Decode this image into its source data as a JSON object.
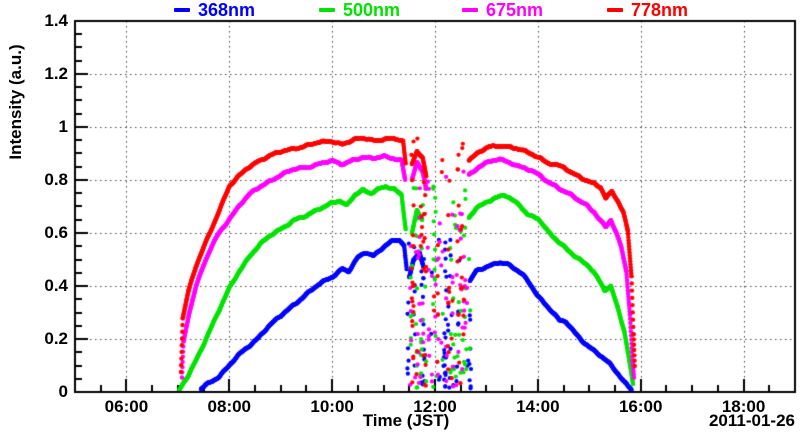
{
  "chart_data": {
    "type": "line",
    "title": "",
    "xlabel": "Time (JST)",
    "ylabel": "Intensity (a.u.)",
    "date_label": "2011-01-26",
    "xlim_hours": [
      5,
      19
    ],
    "ylim": [
      0,
      1.4
    ],
    "grid": {
      "x": true,
      "y": true,
      "style": "dotted"
    },
    "legend_position": "top",
    "xticks": [
      {
        "h": 6,
        "label": "06:00"
      },
      {
        "h": 8,
        "label": "08:00"
      },
      {
        "h": 10,
        "label": "10:00"
      },
      {
        "h": 12,
        "label": "12:00"
      },
      {
        "h": 14,
        "label": "14:00"
      },
      {
        "h": 16,
        "label": "16:00"
      },
      {
        "h": 18,
        "label": "18:00"
      }
    ],
    "x_minor_step_hours": 0.5,
    "yticks": [
      {
        "v": 0,
        "label": "0"
      },
      {
        "v": 0.2,
        "label": "0.2"
      },
      {
        "v": 0.4,
        "label": "0.4"
      },
      {
        "v": 0.6,
        "label": "0.6"
      },
      {
        "v": 0.8,
        "label": "0.8"
      },
      {
        "v": 1,
        "label": "1"
      },
      {
        "v": 1.2,
        "label": "1.2"
      },
      {
        "v": 1.4,
        "label": "1.4"
      }
    ],
    "y_minor_step": 0.05,
    "cloud_gap_hours": [
      11.45,
      12.66
    ],
    "series": [
      {
        "name": "368nm",
        "color": "#0000ff",
        "peak": 0.58,
        "segments": [
          [
            [
              7.45,
              0.01
            ],
            [
              7.6,
              0.035
            ],
            [
              7.8,
              0.06
            ],
            [
              8.0,
              0.1
            ],
            [
              8.25,
              0.15
            ],
            [
              8.5,
              0.195
            ],
            [
              8.75,
              0.245
            ],
            [
              9.0,
              0.285
            ],
            [
              9.25,
              0.33
            ],
            [
              9.5,
              0.37
            ],
            [
              9.75,
              0.405
            ],
            [
              10.0,
              0.435
            ],
            [
              10.2,
              0.468
            ],
            [
              10.32,
              0.455
            ],
            [
              10.5,
              0.505
            ],
            [
              10.65,
              0.525
            ],
            [
              10.8,
              0.515
            ],
            [
              11.0,
              0.55
            ],
            [
              11.15,
              0.568
            ],
            [
              11.3,
              0.572
            ],
            [
              11.4,
              0.55
            ],
            [
              11.45,
              0.46
            ]
          ],
          [
            [
              11.5,
              0.43
            ],
            [
              11.58,
              0.5
            ],
            [
              11.7,
              0.53
            ],
            [
              11.78,
              0.47
            ]
          ],
          [
            [
              12.68,
              0.42
            ],
            [
              12.8,
              0.455
            ],
            [
              12.95,
              0.465
            ],
            [
              13.1,
              0.478
            ],
            [
              13.25,
              0.492
            ],
            [
              13.4,
              0.486
            ],
            [
              13.55,
              0.465
            ],
            [
              13.7,
              0.442
            ],
            [
              13.85,
              0.405
            ],
            [
              14.0,
              0.365
            ],
            [
              14.15,
              0.332
            ],
            [
              14.3,
              0.3
            ],
            [
              14.42,
              0.268
            ],
            [
              14.55,
              0.262
            ],
            [
              14.7,
              0.228
            ],
            [
              14.85,
              0.198
            ],
            [
              15.0,
              0.172
            ],
            [
              15.2,
              0.138
            ],
            [
              15.4,
              0.104
            ],
            [
              15.55,
              0.072
            ],
            [
              15.7,
              0.036
            ],
            [
              15.82,
              0.012
            ]
          ]
        ],
        "cloud_scatter": {
          "t_range": [
            11.45,
            12.7
          ],
          "v_max": 0.58,
          "columns": 24,
          "seed": 11
        }
      },
      {
        "name": "500nm",
        "color": "#00e300",
        "peak": 0.775,
        "segments": [
          [
            [
              7.03,
              0.005
            ],
            [
              7.2,
              0.06
            ],
            [
              7.4,
              0.14
            ],
            [
              7.6,
              0.225
            ],
            [
              7.8,
              0.305
            ],
            [
              8.0,
              0.39
            ],
            [
              8.2,
              0.46
            ],
            [
              8.4,
              0.515
            ],
            [
              8.6,
              0.555
            ],
            [
              8.8,
              0.59
            ],
            [
              9.0,
              0.617
            ],
            [
              9.25,
              0.648
            ],
            [
              9.5,
              0.662
            ],
            [
              9.75,
              0.693
            ],
            [
              10.0,
              0.716
            ],
            [
              10.15,
              0.72
            ],
            [
              10.28,
              0.7
            ],
            [
              10.45,
              0.745
            ],
            [
              10.6,
              0.765
            ],
            [
              10.75,
              0.752
            ],
            [
              10.9,
              0.765
            ],
            [
              11.05,
              0.772
            ],
            [
              11.2,
              0.765
            ],
            [
              11.35,
              0.745
            ],
            [
              11.43,
              0.62
            ]
          ],
          [
            [
              11.55,
              0.6
            ],
            [
              11.65,
              0.685
            ],
            [
              11.75,
              0.65
            ]
          ],
          [
            [
              12.66,
              0.655
            ],
            [
              12.8,
              0.692
            ],
            [
              13.0,
              0.72
            ],
            [
              13.2,
              0.735
            ],
            [
              13.35,
              0.742
            ],
            [
              13.5,
              0.722
            ],
            [
              13.65,
              0.705
            ],
            [
              13.8,
              0.672
            ],
            [
              14.0,
              0.657
            ],
            [
              14.2,
              0.602
            ],
            [
              14.4,
              0.566
            ],
            [
              14.6,
              0.536
            ],
            [
              14.8,
              0.502
            ],
            [
              15.0,
              0.47
            ],
            [
              15.15,
              0.432
            ],
            [
              15.3,
              0.386
            ],
            [
              15.42,
              0.402
            ],
            [
              15.55,
              0.322
            ],
            [
              15.68,
              0.23
            ],
            [
              15.78,
              0.115
            ],
            [
              15.85,
              0.025
            ]
          ]
        ],
        "cloud_scatter": {
          "t_range": [
            11.45,
            12.7
          ],
          "v_max": 0.775,
          "columns": 24,
          "seed": 22
        }
      },
      {
        "name": "675nm",
        "color": "#ff00ff",
        "peak": 0.89,
        "segments": [
          [
            [
              7.08,
              0.055
            ],
            [
              7.11,
              0.19
            ],
            [
              7.22,
              0.3
            ],
            [
              7.35,
              0.4
            ],
            [
              7.5,
              0.475
            ],
            [
              7.65,
              0.545
            ],
            [
              7.8,
              0.6
            ],
            [
              8.0,
              0.655
            ],
            [
              8.2,
              0.705
            ],
            [
              8.4,
              0.745
            ],
            [
              8.6,
              0.775
            ],
            [
              8.8,
              0.8
            ],
            [
              9.0,
              0.818
            ],
            [
              9.25,
              0.838
            ],
            [
              9.5,
              0.85
            ],
            [
              9.75,
              0.862
            ],
            [
              10.0,
              0.87
            ],
            [
              10.18,
              0.858
            ],
            [
              10.4,
              0.878
            ],
            [
              10.6,
              0.886
            ],
            [
              10.8,
              0.878
            ],
            [
              11.0,
              0.89
            ],
            [
              11.2,
              0.884
            ],
            [
              11.35,
              0.874
            ],
            [
              11.42,
              0.8
            ]
          ],
          [
            [
              11.55,
              0.8
            ],
            [
              11.65,
              0.862
            ],
            [
              11.76,
              0.83
            ],
            [
              11.83,
              0.77
            ]
          ],
          [
            [
              12.66,
              0.82
            ],
            [
              12.85,
              0.852
            ],
            [
              13.05,
              0.868
            ],
            [
              13.25,
              0.876
            ],
            [
              13.45,
              0.868
            ],
            [
              13.6,
              0.856
            ],
            [
              13.75,
              0.846
            ],
            [
              13.9,
              0.83
            ],
            [
              14.05,
              0.814
            ],
            [
              14.2,
              0.792
            ],
            [
              14.35,
              0.78
            ],
            [
              14.5,
              0.76
            ],
            [
              14.65,
              0.742
            ],
            [
              14.8,
              0.72
            ],
            [
              14.95,
              0.704
            ],
            [
              15.1,
              0.68
            ],
            [
              15.2,
              0.654
            ],
            [
              15.32,
              0.624
            ],
            [
              15.42,
              0.648
            ],
            [
              15.52,
              0.6
            ],
            [
              15.62,
              0.545
            ],
            [
              15.72,
              0.455
            ],
            [
              15.79,
              0.295
            ],
            [
              15.84,
              0.12
            ],
            [
              15.87,
              0.055
            ]
          ]
        ],
        "cloud_scatter": {
          "t_range": [
            11.45,
            12.7
          ],
          "v_max": 0.89,
          "columns": 24,
          "seed": 33
        }
      },
      {
        "name": "778nm",
        "color": "#ff0000",
        "peak": 0.958,
        "segments": [
          [
            [
              7.06,
              0.08
            ],
            [
              7.095,
              0.28
            ],
            [
              7.2,
              0.375
            ],
            [
              7.35,
              0.47
            ],
            [
              7.5,
              0.545
            ],
            [
              7.65,
              0.615
            ],
            [
              7.8,
              0.685
            ],
            [
              8.0,
              0.775
            ],
            [
              8.15,
              0.805
            ],
            [
              8.35,
              0.845
            ],
            [
              8.55,
              0.872
            ],
            [
              8.75,
              0.888
            ],
            [
              9.0,
              0.905
            ],
            [
              9.25,
              0.92
            ],
            [
              9.5,
              0.93
            ],
            [
              9.75,
              0.94
            ],
            [
              10.0,
              0.947
            ],
            [
              10.2,
              0.937
            ],
            [
              10.45,
              0.952
            ],
            [
              10.65,
              0.956
            ],
            [
              10.85,
              0.95
            ],
            [
              11.05,
              0.958
            ],
            [
              11.25,
              0.952
            ],
            [
              11.38,
              0.945
            ],
            [
              11.43,
              0.86
            ]
          ],
          [
            [
              11.55,
              0.862
            ],
            [
              11.65,
              0.912
            ],
            [
              11.76,
              0.885
            ],
            [
              11.83,
              0.815
            ]
          ],
          [
            [
              12.66,
              0.875
            ],
            [
              12.85,
              0.902
            ],
            [
              13.05,
              0.924
            ],
            [
              13.25,
              0.932
            ],
            [
              13.45,
              0.926
            ],
            [
              13.6,
              0.916
            ],
            [
              13.75,
              0.906
            ],
            [
              13.9,
              0.896
            ],
            [
              14.05,
              0.884
            ],
            [
              14.2,
              0.866
            ],
            [
              14.35,
              0.856
            ],
            [
              14.5,
              0.846
            ],
            [
              14.65,
              0.826
            ],
            [
              14.8,
              0.816
            ],
            [
              14.95,
              0.8
            ],
            [
              15.1,
              0.786
            ],
            [
              15.22,
              0.77
            ],
            [
              15.32,
              0.728
            ],
            [
              15.44,
              0.756
            ],
            [
              15.56,
              0.72
            ],
            [
              15.66,
              0.682
            ],
            [
              15.75,
              0.61
            ],
            [
              15.82,
              0.44
            ],
            [
              15.86,
              0.22
            ],
            [
              15.885,
              0.1
            ]
          ]
        ],
        "cloud_scatter": {
          "t_range": [
            11.45,
            12.7
          ],
          "v_max": 0.958,
          "columns": 24,
          "seed": 44
        }
      }
    ]
  }
}
